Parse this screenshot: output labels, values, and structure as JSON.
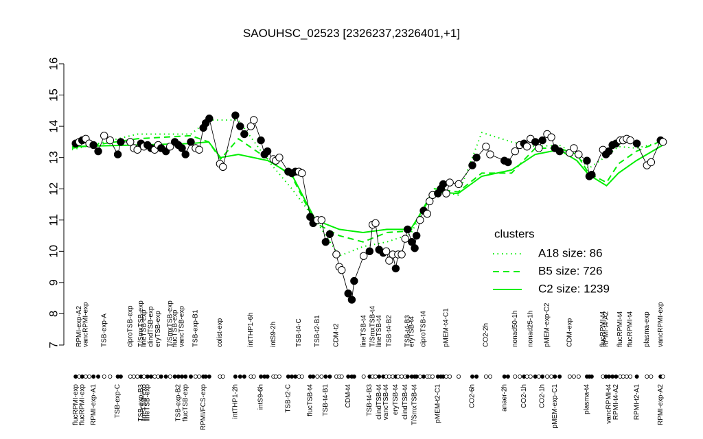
{
  "chart_data": {
    "type": "line",
    "title": "SAOUHSC_02523 [2326237,2326401,+1]",
    "xlim": [
      0,
      100
    ],
    "ylim": [
      7,
      16
    ],
    "yticks": [
      7,
      8,
      9,
      10,
      11,
      12,
      13,
      14,
      15,
      16
    ],
    "x": [
      0.6,
      1.2,
      1.7,
      2.3,
      2.9,
      3.6,
      4.4,
      5.4,
      6.4,
      7.7,
      8.2,
      9.8,
      10.4,
      11.0,
      11.6,
      12.1,
      12.7,
      13.3,
      13.9,
      14.5,
      15.0,
      15.8,
      16.5,
      17.3,
      17.9,
      18.5,
      19.1,
      20.0,
      20.8,
      21.4,
      22.1,
      22.5,
      23.1,
      24.9,
      25.4,
      27.5,
      28.3,
      29.0,
      30.1,
      30.6,
      31.8,
      32.4,
      32.9,
      33.9,
      34.3,
      34.9,
      36.4,
      37.0,
      37.6,
      38.2,
      38.7,
      40.1,
      40.6,
      41.3,
      42.0,
      42.7,
      43.4,
      44.5,
      45.0,
      45.4,
      46.5,
      47.1,
      47.5,
      49.1,
      50.1,
      50.6,
      51.1,
      51.7,
      52.4,
      52.9,
      53.4,
      54.0,
      54.5,
      54.9,
      55.5,
      56.1,
      56.5,
      57.2,
      57.7,
      58.0,
      58.6,
      59.2,
      59.8,
      60.2,
      60.7,
      61.6,
      62.1,
      62.5,
      63.0,
      63.6,
      65.1,
      67.4,
      68.1,
      69.7,
      70.4,
      72.8,
      73.4,
      74.6,
      75.4,
      76.1,
      76.6,
      77.2,
      78.0,
      78.6,
      79.2,
      80.0,
      80.7,
      81.3,
      82.1,
      83.8,
      84.5,
      85.3,
      86.7,
      87.1,
      87.5,
      89.4,
      89.9,
      90.4,
      91.0,
      91.6,
      92.3,
      92.8,
      93.4,
      94.0,
      95.1,
      96.8,
      97.5,
      99.1,
      99.5
    ],
    "values": [
      13.45,
      13.5,
      13.55,
      13.6,
      13.45,
      13.4,
      13.2,
      13.7,
      13.55,
      13.1,
      13.5,
      13.5,
      13.3,
      13.25,
      13.45,
      13.35,
      13.4,
      13.3,
      13.25,
      13.4,
      13.3,
      13.2,
      13.35,
      13.5,
      13.4,
      13.3,
      13.1,
      13.5,
      13.3,
      13.25,
      13.95,
      14.1,
      14.25,
      12.8,
      12.7,
      14.35,
      14.0,
      13.75,
      14.0,
      14.2,
      13.55,
      13.1,
      13.2,
      12.95,
      12.9,
      13.0,
      12.55,
      12.5,
      12.55,
      12.55,
      12.5,
      11.1,
      10.9,
      11.0,
      11.0,
      10.3,
      10.55,
      9.9,
      9.5,
      9.4,
      8.65,
      8.45,
      9.05,
      9.85,
      10.0,
      10.85,
      10.9,
      10.05,
      9.95,
      10.0,
      9.7,
      9.9,
      9.45,
      9.9,
      9.9,
      10.4,
      10.7,
      10.3,
      10.1,
      10.5,
      11.0,
      11.3,
      11.2,
      11.6,
      11.8,
      11.85,
      12.0,
      12.15,
      11.85,
      12.2,
      12.15,
      12.75,
      13.0,
      13.35,
      13.1,
      12.9,
      12.85,
      13.2,
      13.4,
      13.45,
      13.35,
      13.6,
      13.5,
      13.3,
      13.55,
      13.75,
      13.65,
      13.3,
      13.2,
      13.15,
      13.3,
      13.1,
      12.9,
      12.4,
      12.45,
      13.25,
      13.1,
      13.2,
      13.4,
      13.45,
      13.55,
      13.55,
      13.6,
      13.55,
      13.45,
      12.75,
      12.85,
      13.55,
      13.5
    ],
    "filled": [
      true,
      false,
      true,
      false,
      false,
      true,
      true,
      false,
      false,
      true,
      true,
      false,
      false,
      false,
      true,
      false,
      true,
      true,
      false,
      false,
      true,
      true,
      false,
      true,
      true,
      true,
      true,
      true,
      false,
      false,
      true,
      true,
      true,
      false,
      false,
      true,
      true,
      true,
      false,
      false,
      true,
      true,
      true,
      false,
      false,
      false,
      true,
      true,
      true,
      false,
      false,
      true,
      true,
      false,
      false,
      true,
      true,
      false,
      false,
      false,
      true,
      true,
      true,
      false,
      true,
      false,
      false,
      true,
      true,
      false,
      false,
      false,
      true,
      false,
      false,
      false,
      true,
      true,
      true,
      true,
      false,
      true,
      false,
      false,
      false,
      true,
      true,
      true,
      false,
      false,
      false,
      true,
      true,
      false,
      false,
      true,
      true,
      false,
      false,
      true,
      false,
      false,
      true,
      false,
      true,
      false,
      false,
      true,
      true,
      false,
      false,
      false,
      true,
      true,
      true,
      false,
      true,
      true,
      true,
      true,
      false,
      false,
      false,
      false,
      true,
      false,
      false,
      true,
      false
    ],
    "top_labels": [
      null,
      "RPMI-exp-A2",
      null,
      "vancRPMI-exp",
      null,
      null,
      null,
      "TSB-exp-A",
      null,
      null,
      null,
      "ciproTSB-exp",
      null,
      null,
      "T/SmxTSB-exp",
      "lineTSB-exp",
      null,
      "clindTSB-exp",
      null,
      "eryTSB-exp",
      null,
      null,
      "T/SmxTSB-exp",
      "flucTSB-exp",
      null,
      "vancTSB-exp",
      null,
      null,
      "TSB-exp-B1",
      null,
      null,
      null,
      null,
      "colist-exp",
      null,
      null,
      null,
      null,
      "intTHP1-6h",
      null,
      null,
      null,
      null,
      "intS9-2h",
      null,
      null,
      null,
      null,
      null,
      "TSB-t4-C",
      null,
      null,
      null,
      "TSB-t2-B1",
      null,
      null,
      null,
      "CDM-t2",
      null,
      null,
      null,
      null,
      null,
      "lineTSB-t4",
      null,
      "T/SmxTSB-t4",
      null,
      "lineTSB-t4",
      null,
      null,
      "TSB-t4-B2",
      null,
      null,
      null,
      null,
      null,
      "TSB-t4-B3",
      "eryTSB-t4",
      null,
      null,
      null,
      "ciproTSB-t4",
      null,
      null,
      null,
      null,
      null,
      null,
      "pMEM-t4-C1",
      null,
      null,
      null,
      null,
      "CO2-2h",
      null,
      null,
      null,
      "nonad50-1h",
      null,
      null,
      null,
      "nonad25-1h",
      null,
      null,
      null,
      "pMEM-exp-C2",
      null,
      null,
      null,
      "CDM-exp",
      null,
      null,
      null,
      null,
      null,
      "flucRPMI-t4",
      "RPMI-t4-A2",
      null,
      null,
      null,
      "flucRPMI-t4",
      null,
      null,
      "flucRPMI-t4",
      null,
      "plasma-exp",
      null,
      "vancRPMI-exp",
      null
    ],
    "bottom_labels": [
      "flucRPMI-exp",
      null,
      "flucRPMI-exp",
      null,
      null,
      "RPMI-exp-A1",
      null,
      null,
      null,
      "TSB-exp-C",
      null,
      null,
      null,
      null,
      "TSB-exp-B3",
      "lineTSB-exp",
      "lineTSB-exp",
      null,
      null,
      null,
      null,
      null,
      null,
      null,
      "TSB-exp-B2",
      null,
      "flucTSB-exp",
      null,
      null,
      null,
      "RPMI/FCS-exp",
      null,
      null,
      null,
      null,
      "intTHP1-2h",
      null,
      null,
      null,
      null,
      "intS9-6h",
      null,
      null,
      null,
      null,
      null,
      "TSB-t2-C",
      null,
      null,
      null,
      null,
      "flucTSB-t4",
      null,
      null,
      null,
      "TSB-t4-B1",
      null,
      null,
      null,
      null,
      "CDM-t4",
      null,
      null,
      null,
      "TSB-t4-B3",
      null,
      null,
      "clindTSB-t4",
      null,
      "vancTSB-t4",
      null,
      null,
      "eryTSB-t4",
      null,
      null,
      "clindTSB-t4",
      null,
      null,
      "T/SmxTSB-t4",
      null,
      null,
      null,
      null,
      null,
      null,
      "pMEM-t2-C1",
      null,
      null,
      null,
      null,
      null,
      "CO2-6h",
      null,
      null,
      null,
      "anaer-2h",
      null,
      null,
      null,
      "CO2-1h",
      null,
      null,
      null,
      null,
      "CO2-1h",
      null,
      null,
      "pMEM-exp-C1",
      null,
      null,
      null,
      null,
      "plasma-t4",
      null,
      null,
      null,
      null,
      "vancRPMI-t4",
      null,
      "RPMI-t4-A2",
      null,
      null,
      null,
      null,
      "RPMI-t2-A1",
      null,
      null,
      "RPMI-exp-A2",
      null
    ],
    "legend_title": "clusters",
    "legend_position": "right",
    "series": [
      {
        "name": "A18 size: 86",
        "color": "#00ee00",
        "style": "dotted",
        "x": [
          0,
          11,
          20,
          23,
          25,
          28,
          33,
          37,
          41,
          45,
          49,
          53,
          57,
          61,
          65,
          69,
          74,
          78,
          82,
          85,
          87,
          90,
          92,
          95,
          99.5
        ],
        "values": [
          13.25,
          13.75,
          13.75,
          14.2,
          14.2,
          14.2,
          12.9,
          12.0,
          11.0,
          9.85,
          10.15,
          10.3,
          10.55,
          11.95,
          11.8,
          13.8,
          13.5,
          13.35,
          13.4,
          13.1,
          12.65,
          13.05,
          13.35,
          13.3,
          13.5
        ]
      },
      {
        "name": "B5 size: 726",
        "color": "#00ee00",
        "style": "dashed",
        "x": [
          0,
          11,
          20,
          23,
          25,
          28,
          33,
          37,
          41,
          45,
          49,
          53,
          57,
          61,
          65,
          69,
          74,
          78,
          82,
          85,
          87,
          90,
          92,
          95,
          99.5
        ],
        "values": [
          13.3,
          13.6,
          13.7,
          13.5,
          12.95,
          13.6,
          12.95,
          12.4,
          10.9,
          10.5,
          10.3,
          10.6,
          10.65,
          12.0,
          11.9,
          12.5,
          12.5,
          13.3,
          13.3,
          13.1,
          12.5,
          12.2,
          12.8,
          13.2,
          13.55
        ]
      },
      {
        "name": "C2 size: 1239",
        "color": "#00ee00",
        "style": "solid",
        "x": [
          0,
          11,
          20,
          23,
          25,
          28,
          33,
          37,
          41,
          45,
          49,
          53,
          57,
          61,
          65,
          69,
          74,
          78,
          82,
          85,
          87,
          90,
          92,
          95,
          99.5
        ],
        "values": [
          13.35,
          13.4,
          13.45,
          13.5,
          13.0,
          13.1,
          12.9,
          12.45,
          11.0,
          10.7,
          10.6,
          10.7,
          10.7,
          11.9,
          11.85,
          12.4,
          12.6,
          13.1,
          13.25,
          12.9,
          12.45,
          12.1,
          12.5,
          12.9,
          13.4
        ]
      }
    ]
  }
}
